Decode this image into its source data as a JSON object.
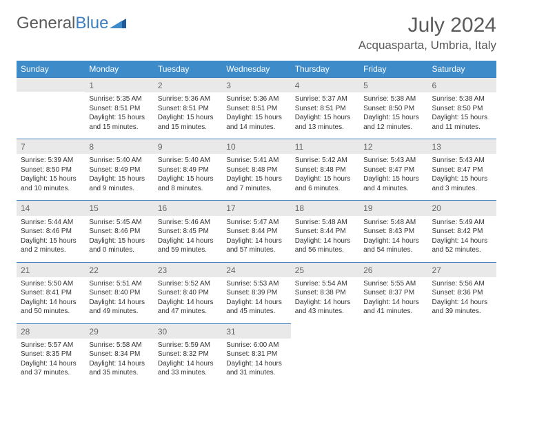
{
  "brand": {
    "part1": "General",
    "part2": "Blue"
  },
  "title": {
    "month_year": "July 2024",
    "location": "Acquasparta, Umbria, Italy"
  },
  "colors": {
    "header_bg": "#3d8bc9",
    "accent": "#3d7fc1",
    "daynum_bg": "#e9e9e9"
  },
  "daynames": [
    "Sunday",
    "Monday",
    "Tuesday",
    "Wednesday",
    "Thursday",
    "Friday",
    "Saturday"
  ],
  "weeks": [
    [
      {
        "n": "",
        "sr": "",
        "ss": "",
        "dl1": "",
        "dl2": ""
      },
      {
        "n": "1",
        "sr": "Sunrise: 5:35 AM",
        "ss": "Sunset: 8:51 PM",
        "dl1": "Daylight: 15 hours",
        "dl2": "and 15 minutes."
      },
      {
        "n": "2",
        "sr": "Sunrise: 5:36 AM",
        "ss": "Sunset: 8:51 PM",
        "dl1": "Daylight: 15 hours",
        "dl2": "and 15 minutes."
      },
      {
        "n": "3",
        "sr": "Sunrise: 5:36 AM",
        "ss": "Sunset: 8:51 PM",
        "dl1": "Daylight: 15 hours",
        "dl2": "and 14 minutes."
      },
      {
        "n": "4",
        "sr": "Sunrise: 5:37 AM",
        "ss": "Sunset: 8:51 PM",
        "dl1": "Daylight: 15 hours",
        "dl2": "and 13 minutes."
      },
      {
        "n": "5",
        "sr": "Sunrise: 5:38 AM",
        "ss": "Sunset: 8:50 PM",
        "dl1": "Daylight: 15 hours",
        "dl2": "and 12 minutes."
      },
      {
        "n": "6",
        "sr": "Sunrise: 5:38 AM",
        "ss": "Sunset: 8:50 PM",
        "dl1": "Daylight: 15 hours",
        "dl2": "and 11 minutes."
      }
    ],
    [
      {
        "n": "7",
        "sr": "Sunrise: 5:39 AM",
        "ss": "Sunset: 8:50 PM",
        "dl1": "Daylight: 15 hours",
        "dl2": "and 10 minutes."
      },
      {
        "n": "8",
        "sr": "Sunrise: 5:40 AM",
        "ss": "Sunset: 8:49 PM",
        "dl1": "Daylight: 15 hours",
        "dl2": "and 9 minutes."
      },
      {
        "n": "9",
        "sr": "Sunrise: 5:40 AM",
        "ss": "Sunset: 8:49 PM",
        "dl1": "Daylight: 15 hours",
        "dl2": "and 8 minutes."
      },
      {
        "n": "10",
        "sr": "Sunrise: 5:41 AM",
        "ss": "Sunset: 8:48 PM",
        "dl1": "Daylight: 15 hours",
        "dl2": "and 7 minutes."
      },
      {
        "n": "11",
        "sr": "Sunrise: 5:42 AM",
        "ss": "Sunset: 8:48 PM",
        "dl1": "Daylight: 15 hours",
        "dl2": "and 6 minutes."
      },
      {
        "n": "12",
        "sr": "Sunrise: 5:43 AM",
        "ss": "Sunset: 8:47 PM",
        "dl1": "Daylight: 15 hours",
        "dl2": "and 4 minutes."
      },
      {
        "n": "13",
        "sr": "Sunrise: 5:43 AM",
        "ss": "Sunset: 8:47 PM",
        "dl1": "Daylight: 15 hours",
        "dl2": "and 3 minutes."
      }
    ],
    [
      {
        "n": "14",
        "sr": "Sunrise: 5:44 AM",
        "ss": "Sunset: 8:46 PM",
        "dl1": "Daylight: 15 hours",
        "dl2": "and 2 minutes."
      },
      {
        "n": "15",
        "sr": "Sunrise: 5:45 AM",
        "ss": "Sunset: 8:46 PM",
        "dl1": "Daylight: 15 hours",
        "dl2": "and 0 minutes."
      },
      {
        "n": "16",
        "sr": "Sunrise: 5:46 AM",
        "ss": "Sunset: 8:45 PM",
        "dl1": "Daylight: 14 hours",
        "dl2": "and 59 minutes."
      },
      {
        "n": "17",
        "sr": "Sunrise: 5:47 AM",
        "ss": "Sunset: 8:44 PM",
        "dl1": "Daylight: 14 hours",
        "dl2": "and 57 minutes."
      },
      {
        "n": "18",
        "sr": "Sunrise: 5:48 AM",
        "ss": "Sunset: 8:44 PM",
        "dl1": "Daylight: 14 hours",
        "dl2": "and 56 minutes."
      },
      {
        "n": "19",
        "sr": "Sunrise: 5:48 AM",
        "ss": "Sunset: 8:43 PM",
        "dl1": "Daylight: 14 hours",
        "dl2": "and 54 minutes."
      },
      {
        "n": "20",
        "sr": "Sunrise: 5:49 AM",
        "ss": "Sunset: 8:42 PM",
        "dl1": "Daylight: 14 hours",
        "dl2": "and 52 minutes."
      }
    ],
    [
      {
        "n": "21",
        "sr": "Sunrise: 5:50 AM",
        "ss": "Sunset: 8:41 PM",
        "dl1": "Daylight: 14 hours",
        "dl2": "and 50 minutes."
      },
      {
        "n": "22",
        "sr": "Sunrise: 5:51 AM",
        "ss": "Sunset: 8:40 PM",
        "dl1": "Daylight: 14 hours",
        "dl2": "and 49 minutes."
      },
      {
        "n": "23",
        "sr": "Sunrise: 5:52 AM",
        "ss": "Sunset: 8:40 PM",
        "dl1": "Daylight: 14 hours",
        "dl2": "and 47 minutes."
      },
      {
        "n": "24",
        "sr": "Sunrise: 5:53 AM",
        "ss": "Sunset: 8:39 PM",
        "dl1": "Daylight: 14 hours",
        "dl2": "and 45 minutes."
      },
      {
        "n": "25",
        "sr": "Sunrise: 5:54 AM",
        "ss": "Sunset: 8:38 PM",
        "dl1": "Daylight: 14 hours",
        "dl2": "and 43 minutes."
      },
      {
        "n": "26",
        "sr": "Sunrise: 5:55 AM",
        "ss": "Sunset: 8:37 PM",
        "dl1": "Daylight: 14 hours",
        "dl2": "and 41 minutes."
      },
      {
        "n": "27",
        "sr": "Sunrise: 5:56 AM",
        "ss": "Sunset: 8:36 PM",
        "dl1": "Daylight: 14 hours",
        "dl2": "and 39 minutes."
      }
    ],
    [
      {
        "n": "28",
        "sr": "Sunrise: 5:57 AM",
        "ss": "Sunset: 8:35 PM",
        "dl1": "Daylight: 14 hours",
        "dl2": "and 37 minutes."
      },
      {
        "n": "29",
        "sr": "Sunrise: 5:58 AM",
        "ss": "Sunset: 8:34 PM",
        "dl1": "Daylight: 14 hours",
        "dl2": "and 35 minutes."
      },
      {
        "n": "30",
        "sr": "Sunrise: 5:59 AM",
        "ss": "Sunset: 8:32 PM",
        "dl1": "Daylight: 14 hours",
        "dl2": "and 33 minutes."
      },
      {
        "n": "31",
        "sr": "Sunrise: 6:00 AM",
        "ss": "Sunset: 8:31 PM",
        "dl1": "Daylight: 14 hours",
        "dl2": "and 31 minutes."
      },
      {
        "n": "",
        "sr": "",
        "ss": "",
        "dl1": "",
        "dl2": ""
      },
      {
        "n": "",
        "sr": "",
        "ss": "",
        "dl1": "",
        "dl2": ""
      },
      {
        "n": "",
        "sr": "",
        "ss": "",
        "dl1": "",
        "dl2": ""
      }
    ]
  ]
}
